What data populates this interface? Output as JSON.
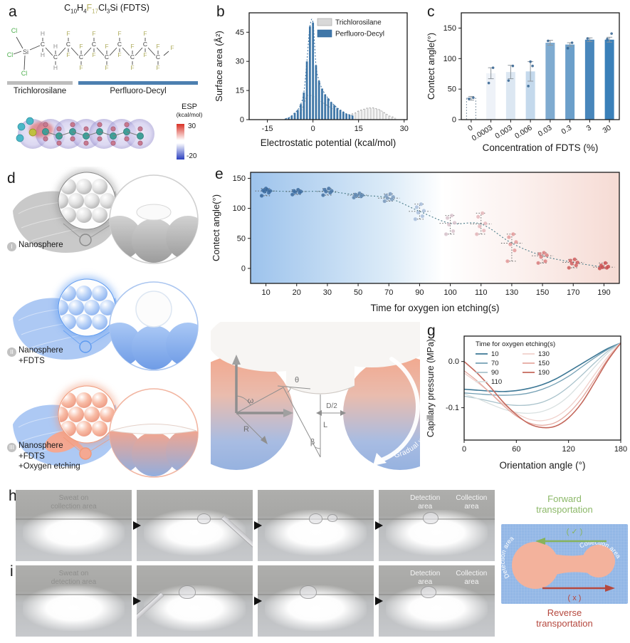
{
  "panels": {
    "a": {
      "label": "a",
      "formula": [
        {
          "t": "C",
          "s": "10"
        },
        {
          "t": "H",
          "s": "4"
        },
        {
          "t": "F",
          "s": "17",
          "c": "#b3ae5e"
        },
        {
          "t": "Cl",
          "s": "3"
        },
        {
          "t": "Si (FDTS)"
        }
      ],
      "atoms": {
        "si": "Si",
        "cl": "Cl",
        "h": "H",
        "f": "F",
        "c": "C",
        "cl_color": "#4cae4c",
        "h_color": "#8f8f8f",
        "f_color": "#b0ad5e",
        "c_color": "#3a3a3a"
      },
      "groups": {
        "left": "Trichlorosilane",
        "right": "Perfluoro-Decyl"
      },
      "group_colors": {
        "left": "#bdbdbd",
        "right": "#4c7fb0"
      },
      "esp": {
        "title": "ESP",
        "unit": "(kcal/mol)",
        "max": "30",
        "min": "-20"
      }
    },
    "b": {
      "label": "b"
    },
    "c": {
      "label": "c"
    },
    "d": {
      "label": "d",
      "rows": [
        {
          "numeral": "I",
          "line1": "Nanosphere",
          "line2": "",
          "line3": "",
          "theme": {
            "fabric": "#c6c6c6",
            "accent": "#8a8a8a",
            "sphere_top": "#d2d2d2",
            "sphere_bottom": "#9c9c9c",
            "mag_top": "#e2e2e2",
            "mag_bottom": "#a2a2a2",
            "ring": "#d0d0d0",
            "droplet": "flat"
          }
        },
        {
          "numeral": "II",
          "line1": "Nanosphere",
          "line2": "+FDTS",
          "line3": "",
          "theme": {
            "fabric": "#a9c6f3",
            "accent": "#5d9af0",
            "sphere_top": "#aac8f5",
            "sphere_bottom": "#6f9ce6",
            "mag_top": "#bcd4f8",
            "mag_bottom": "#7aa6ec",
            "ring": "#abc6f0",
            "droplet": "ball"
          }
        },
        {
          "numeral": "III",
          "line1": "Nanosphere",
          "line2": "+FDTS",
          "line3": "+Oxygen etching",
          "theme": {
            "fabric": "#a9c6f3",
            "accent": "#f09878",
            "sphere_top": "#f3a58e",
            "sphere_bottom": "#92aede",
            "mag_top": "#f8bca6",
            "mag_bottom": "#e88c74",
            "ring": "#f2b6a2",
            "droplet": "film",
            "patch": "#f4a892"
          }
        }
      ]
    },
    "e": {
      "label": "e"
    },
    "f": {
      "label": "f",
      "labels": {
        "theta": "θ",
        "omega": "ω",
        "R": "R",
        "L": "L",
        "D2": "D/2",
        "beta": "β"
      },
      "curved_text": "Gradual wettability"
    },
    "g": {
      "label": "g"
    },
    "h": {
      "label": "h",
      "cap1": "Sweat on",
      "cap2": "collection area",
      "det1": "Detection",
      "det2": "area",
      "col1": "Collection",
      "col2": "area"
    },
    "i": {
      "label": "i",
      "cap1": "Sweat on",
      "cap2": "detection area",
      "det1": "Detection",
      "det2": "area",
      "col1": "Collection",
      "col2": "area"
    },
    "transport": {
      "fwd1": "Forward",
      "fwd2": "transportation",
      "rev1": "Reverse",
      "rev2": "transportation",
      "check": "( ✓ )",
      "cross": "( x )",
      "left_area": "Detection area",
      "right_area": "Collection area",
      "colors": {
        "forward": "#86b35c",
        "reverse": "#b5483e",
        "mat": "#93b7e6",
        "channel": "#f3b29c"
      }
    }
  },
  "chart_data": [
    {
      "id": "b",
      "type": "bar",
      "xlabel": "Electrostatic potential (kcal/mol)",
      "ylabel": "Surface area (Å²)",
      "xlim": [
        -21,
        31
      ],
      "ylim": [
        0,
        55
      ],
      "xticks": [
        -15,
        0,
        15,
        30
      ],
      "yticks": [
        0,
        15,
        30,
        45
      ],
      "legend_position": "top-right",
      "series": [
        {
          "name": "Trichlorosilane",
          "color": "#d8d8d8",
          "edge": "#9e9e9e",
          "points": [
            [
              -5,
              2
            ],
            [
              -4,
              4
            ],
            [
              -3,
              8
            ],
            [
              -2,
              12
            ],
            [
              -1,
              12.5
            ],
            [
              0,
              12
            ],
            [
              1,
              11
            ],
            [
              2,
              10
            ],
            [
              3,
              9
            ],
            [
              4,
              8
            ],
            [
              5,
              7
            ],
            [
              6,
              6
            ],
            [
              7,
              5
            ],
            [
              8,
              4
            ],
            [
              9,
              3.5
            ],
            [
              10,
              3
            ],
            [
              11,
              2.5
            ],
            [
              12,
              2.5
            ],
            [
              13,
              3
            ],
            [
              14,
              3.5
            ],
            [
              15,
              4.5
            ],
            [
              16,
              5
            ],
            [
              17,
              5.5
            ],
            [
              18,
              6
            ],
            [
              19,
              6
            ],
            [
              20,
              6
            ],
            [
              21,
              5.5
            ],
            [
              22,
              5
            ],
            [
              23,
              4
            ],
            [
              24,
              3
            ],
            [
              25,
              2
            ],
            [
              26,
              1.5
            ],
            [
              27,
              1
            ]
          ]
        },
        {
          "name": "Perfluoro-Decyl",
          "color": "#4077a8",
          "edge": "#2f6a9e",
          "points": [
            [
              -9,
              0.5
            ],
            [
              -8,
              1
            ],
            [
              -7,
              2
            ],
            [
              -6,
              3.5
            ],
            [
              -5,
              5
            ],
            [
              -4,
              8
            ],
            [
              -3,
              14
            ],
            [
              -2,
              30
            ],
            [
              -1,
              48
            ],
            [
              0,
              50
            ],
            [
              1,
              28
            ],
            [
              2,
              20
            ],
            [
              3,
              16
            ],
            [
              4,
              13
            ],
            [
              5,
              11
            ],
            [
              6,
              9
            ],
            [
              7,
              7.5
            ],
            [
              8,
              6
            ],
            [
              9,
              5
            ],
            [
              10,
              4
            ],
            [
              11,
              3
            ],
            [
              12,
              2.5
            ],
            [
              13,
              2
            ]
          ]
        }
      ]
    },
    {
      "id": "c",
      "type": "bar",
      "xlabel": "Concentration of FDTS (%)",
      "ylabel": "Contect angle(°)",
      "categories": [
        "0",
        "0.0003",
        "0.003",
        "0.006",
        "0.03",
        "0.3",
        "3",
        "30"
      ],
      "values": [
        35,
        76,
        78,
        79,
        126,
        123,
        131,
        131
      ],
      "errors": [
        3,
        9,
        11,
        16,
        4,
        3,
        3,
        4
      ],
      "points": [
        [
          34,
          36
        ],
        [
          60,
          85
        ],
        [
          64,
          88
        ],
        [
          55,
          88,
          95
        ],
        [
          129
        ],
        [
          117,
          126
        ],
        [
          133
        ],
        [
          132,
          141
        ]
      ],
      "bar_colors": [
        "#ffffff",
        "#eef2f8",
        "#dce7f2",
        "#c4d9ec",
        "#7fabd0",
        "#6b9fca",
        "#4886bb",
        "#3a80b9"
      ],
      "ylim": [
        0,
        175
      ],
      "yticks": [
        0,
        50,
        100,
        150
      ]
    },
    {
      "id": "e",
      "type": "scatter",
      "xlabel": "Time for oxygen ion etching(s)",
      "ylabel": "Contect angle(°)",
      "ylim": [
        -25,
        160
      ],
      "yticks": [
        0,
        50,
        100,
        150
      ],
      "background_gradient": [
        "#9dc3ec",
        "#ffffff",
        "#f6dbd4"
      ],
      "trend_color": "#4b7d8a",
      "groups": [
        {
          "t": 10,
          "mean": 129,
          "points": [
            121,
            126,
            128,
            129,
            130,
            131,
            133
          ],
          "color": "#3a689c"
        },
        {
          "t": 20,
          "mean": 128,
          "points": [
            123,
            126,
            127,
            128,
            129,
            131
          ],
          "color": "#3e6da0"
        },
        {
          "t": 30,
          "mean": 128,
          "points": [
            122,
            126,
            128,
            129,
            131,
            133
          ],
          "color": "#4673a3"
        },
        {
          "t": 50,
          "mean": 122,
          "points": [
            118,
            120,
            121,
            122,
            123,
            125
          ],
          "color": "#5f87b0"
        },
        {
          "t": 70,
          "mean": 117,
          "points": [
            112,
            115,
            117,
            119,
            121,
            124
          ],
          "color": "#7f9ec0"
        },
        {
          "t": 90,
          "mean": 95,
          "points": [
            82,
            87,
            93,
            96,
            102,
            107
          ],
          "color": "#aabfdc"
        },
        {
          "t": 100,
          "mean": 75,
          "points": [
            57,
            62,
            73,
            76,
            84,
            88
          ],
          "color": "#d9c4ce"
        },
        {
          "t": 110,
          "mean": 74,
          "points": [
            57,
            63,
            70,
            75,
            86,
            92
          ],
          "color": "#e5b8bc"
        },
        {
          "t": 130,
          "mean": 42,
          "points": [
            12,
            30,
            40,
            44,
            52,
            57
          ],
          "color": "#e49b9b"
        },
        {
          "t": 150,
          "mean": 21,
          "points": [
            9,
            12,
            19,
            22,
            24,
            26
          ],
          "color": "#da8080"
        },
        {
          "t": 170,
          "mean": 10,
          "points": [
            1,
            5,
            8,
            10,
            13,
            15
          ],
          "color": "#d16161"
        },
        {
          "t": 190,
          "mean": 2,
          "points": [
            0,
            1,
            2,
            3,
            5,
            9
          ],
          "color": "#ca5050"
        }
      ]
    },
    {
      "id": "g",
      "type": "line",
      "xlabel": "Orientation angle (°)",
      "ylabel": "Capillary pressure (MPa)",
      "xlim": [
        0,
        180
      ],
      "ylim": [
        -0.17,
        0.055
      ],
      "xticks": [
        0,
        60,
        120,
        180
      ],
      "yticks": [
        0,
        -0.1
      ],
      "legend_title": "Time for oxygen etching(s)",
      "legend_columns": [
        [
          "10",
          "70",
          "90",
          "110"
        ],
        [
          "130",
          "150",
          "190"
        ]
      ],
      "x": [
        0,
        15,
        30,
        45,
        60,
        75,
        90,
        105,
        120,
        135,
        150,
        165,
        180
      ],
      "series": [
        {
          "name": "10",
          "color": "#3c7795",
          "values": [
            -0.06,
            -0.062,
            -0.064,
            -0.065,
            -0.063,
            -0.058,
            -0.05,
            -0.038,
            -0.022,
            -0.005,
            0.012,
            0.028,
            0.04
          ]
        },
        {
          "name": "70",
          "color": "#74a0b4",
          "values": [
            -0.068,
            -0.07,
            -0.072,
            -0.073,
            -0.072,
            -0.068,
            -0.06,
            -0.048,
            -0.032,
            -0.012,
            0.008,
            0.026,
            0.04
          ]
        },
        {
          "name": "90",
          "color": "#a8c2cb",
          "values": [
            -0.075,
            -0.08,
            -0.086,
            -0.092,
            -0.095,
            -0.094,
            -0.088,
            -0.075,
            -0.055,
            -0.03,
            -0.003,
            0.022,
            0.04
          ]
        },
        {
          "name": "110",
          "color": "#d9e1e1",
          "values": [
            -0.07,
            -0.08,
            -0.092,
            -0.103,
            -0.11,
            -0.112,
            -0.108,
            -0.096,
            -0.075,
            -0.045,
            -0.012,
            0.018,
            0.04
          ]
        },
        {
          "name": "130",
          "color": "#f0d0cb",
          "values": [
            -0.025,
            -0.045,
            -0.068,
            -0.092,
            -0.112,
            -0.125,
            -0.128,
            -0.12,
            -0.1,
            -0.068,
            -0.028,
            0.01,
            0.04
          ]
        },
        {
          "name": "150",
          "color": "#e4a89f",
          "values": [
            -0.02,
            -0.042,
            -0.068,
            -0.095,
            -0.118,
            -0.133,
            -0.138,
            -0.132,
            -0.112,
            -0.08,
            -0.038,
            0.005,
            0.04
          ]
        },
        {
          "name": "190",
          "color": "#c4685c",
          "values": [
            0.0,
            -0.025,
            -0.055,
            -0.088,
            -0.115,
            -0.135,
            -0.143,
            -0.14,
            -0.122,
            -0.09,
            -0.045,
            0.002,
            0.04
          ]
        }
      ]
    }
  ]
}
